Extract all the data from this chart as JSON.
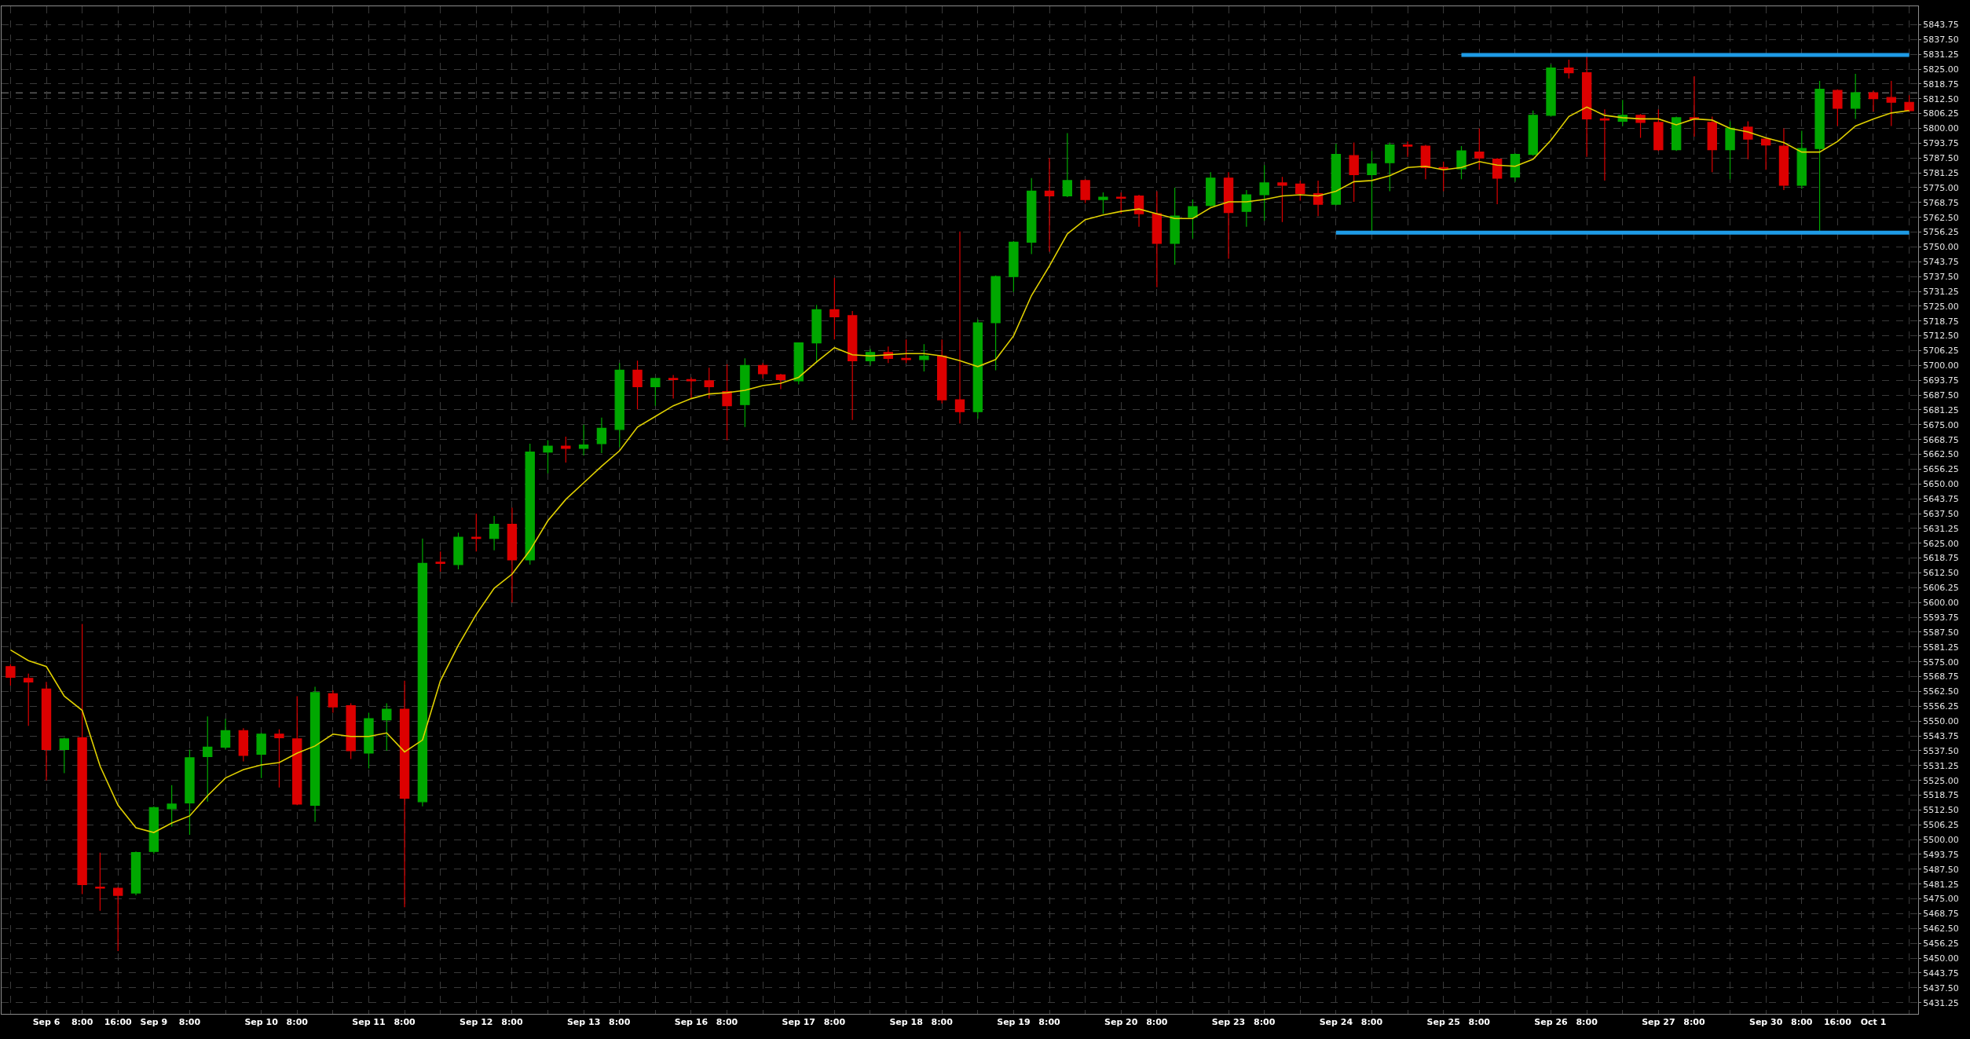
{
  "chart_data": {
    "type": "candlestick",
    "categories": [
      null,
      null,
      "Sep 6",
      null,
      "8:00",
      null,
      "16:00",
      null,
      "Sep 9",
      null,
      "8:00",
      null,
      null,
      null,
      "Sep 10",
      null,
      "8:00",
      null,
      null,
      null,
      "Sep 11",
      null,
      "8:00",
      null,
      null,
      null,
      "Sep 12",
      null,
      "8:00",
      null,
      null,
      null,
      "Sep 13",
      null,
      "8:00",
      null,
      null,
      null,
      "Sep 16",
      null,
      "8:00",
      null,
      null,
      null,
      "Sep 17",
      null,
      "8:00",
      null,
      null,
      null,
      "Sep 18",
      null,
      "8:00",
      null,
      null,
      null,
      "Sep 19",
      null,
      "8:00",
      null,
      null,
      null,
      "Sep 20",
      null,
      "8:00",
      null,
      null,
      null,
      "Sep 23",
      null,
      "8:00",
      null,
      null,
      null,
      "Sep 24",
      null,
      "8:00",
      null,
      null,
      null,
      "Sep 25",
      null,
      "8:00",
      null,
      null,
      null,
      "Sep 26",
      null,
      "8:00",
      null,
      null,
      null,
      "Sep 27",
      null,
      "8:00",
      null,
      null,
      null,
      "Sep 30",
      null,
      "8:00",
      null,
      "16:00",
      null,
      "Oct 1",
      null,
      null
    ],
    "ohlc": [
      [
        5573,
        5574,
        5565,
        5568.5
      ],
      [
        5568,
        5570,
        5548,
        5566.5
      ],
      [
        5563.5,
        5566.5,
        5525,
        5538
      ],
      [
        5538,
        5543,
        5528,
        5542.5
      ],
      [
        5543,
        5591,
        5477,
        5481
      ],
      [
        5480,
        5494.5,
        5470,
        5479.5
      ],
      [
        5479.5,
        5480,
        5453,
        5476.5
      ],
      [
        5477.5,
        5495,
        5476.5,
        5494.5
      ],
      [
        5495,
        5514,
        5494,
        5513.5
      ],
      [
        5513,
        5523,
        5505.5,
        5515
      ],
      [
        5515.5,
        5538,
        5502,
        5534.5
      ],
      [
        5535,
        5552,
        5516,
        5539
      ],
      [
        5539,
        5551,
        5538,
        5546
      ],
      [
        5546,
        5547,
        5533,
        5535.5
      ],
      [
        5536,
        5545,
        5526,
        5544.5
      ],
      [
        5544.5,
        5546.5,
        5522,
        5543
      ],
      [
        5542.5,
        5560.5,
        5514.5,
        5515
      ],
      [
        5514.5,
        5564.5,
        5507.5,
        5562
      ],
      [
        5561.5,
        5563,
        5553.5,
        5556
      ],
      [
        5556.5,
        5557.5,
        5534,
        5537.5
      ],
      [
        5536.5,
        5553.5,
        5530,
        5551
      ],
      [
        5550.5,
        5557.5,
        5537.5,
        5555
      ],
      [
        5555,
        5567,
        5471.5,
        5517.5
      ],
      [
        5516,
        5627,
        5514,
        5616.5
      ],
      [
        5617,
        5621.5,
        5613,
        5616.5
      ],
      [
        5616,
        5629.5,
        5614,
        5627.5
      ],
      [
        5627.5,
        5637.5,
        5621.5,
        5627
      ],
      [
        5627,
        5636.5,
        5622,
        5633
      ],
      [
        5633,
        5640,
        5600,
        5618
      ],
      [
        5618,
        5667,
        5616,
        5663.5
      ],
      [
        5663.5,
        5668.5,
        5654.5,
        5666
      ],
      [
        5666,
        5670,
        5659,
        5665
      ],
      [
        5665,
        5675,
        5662,
        5666.5
      ],
      [
        5667,
        5678,
        5663,
        5673.5
      ],
      [
        5673,
        5701,
        5665.5,
        5698
      ],
      [
        5698,
        5702,
        5681.5,
        5691
      ],
      [
        5691,
        5694.5,
        5683,
        5694.5
      ],
      [
        5694.5,
        5696,
        5686,
        5694
      ],
      [
        5694,
        5695,
        5686,
        5693.5
      ],
      [
        5693.5,
        5699,
        5686,
        5691
      ],
      [
        5689,
        5700.5,
        5668.5,
        5683
      ],
      [
        5683.5,
        5703,
        5674,
        5700
      ],
      [
        5700,
        5701,
        5694.5,
        5696.5
      ],
      [
        5696,
        5696.5,
        5690,
        5694
      ],
      [
        5693.5,
        5709.5,
        5692,
        5709.5
      ],
      [
        5709.5,
        5725.5,
        5701,
        5723.5
      ],
      [
        5723.5,
        5737,
        5711,
        5720.5
      ],
      [
        5721,
        5723,
        5677,
        5702
      ],
      [
        5702,
        5707,
        5700,
        5705.5
      ],
      [
        5705.5,
        5708,
        5701,
        5703
      ],
      [
        5703,
        5711,
        5701,
        5702.5
      ],
      [
        5702.5,
        5709,
        5697.5,
        5704
      ],
      [
        5704,
        5711,
        5684,
        5685.5
      ],
      [
        5685.5,
        5756.5,
        5675.5,
        5680.5
      ],
      [
        5680.5,
        5719.5,
        5677.5,
        5718
      ],
      [
        5718,
        5738,
        5698,
        5737.5
      ],
      [
        5737.5,
        5752.5,
        5731,
        5752
      ],
      [
        5752,
        5779,
        5747,
        5773.5
      ],
      [
        5773.5,
        5787.5,
        5748,
        5771.5
      ],
      [
        5771.5,
        5798,
        5771,
        5778
      ],
      [
        5778,
        5778.5,
        5768.5,
        5770
      ],
      [
        5770,
        5773,
        5764,
        5771
      ],
      [
        5771,
        5773,
        5764,
        5770.5
      ],
      [
        5771.5,
        5772,
        5758.5,
        5764
      ],
      [
        5764,
        5773.5,
        5733,
        5751.5
      ],
      [
        5751.5,
        5775,
        5742.5,
        5763
      ],
      [
        5762.5,
        5770,
        5753.5,
        5767
      ],
      [
        5767.5,
        5781.5,
        5767,
        5779
      ],
      [
        5779,
        5781.5,
        5745,
        5764.5
      ],
      [
        5765,
        5774,
        5758.5,
        5772
      ],
      [
        5772,
        5784.5,
        5761,
        5777
      ],
      [
        5777,
        5779.5,
        5760.5,
        5776
      ],
      [
        5776.5,
        5778,
        5769.5,
        5772.5
      ],
      [
        5772.5,
        5778,
        5763,
        5768
      ],
      [
        5768,
        5793.5,
        5767.5,
        5789
      ],
      [
        5788.5,
        5794,
        5769,
        5780.5
      ],
      [
        5780.5,
        5790.5,
        5756,
        5785
      ],
      [
        5785.5,
        5794,
        5773.5,
        5793
      ],
      [
        5793,
        5794.5,
        5788,
        5792.5
      ],
      [
        5792.5,
        5793,
        5778.5,
        5783.5
      ],
      [
        5783.5,
        5786,
        5773.5,
        5783
      ],
      [
        5783,
        5792.5,
        5778.5,
        5790.5
      ],
      [
        5790,
        5800,
        5782.5,
        5787.5
      ],
      [
        5787,
        5787.5,
        5768,
        5779
      ],
      [
        5779.5,
        5789.5,
        5777.5,
        5789
      ],
      [
        5789,
        5807.5,
        5788.5,
        5805.5
      ],
      [
        5805.5,
        5827,
        5805,
        5825.5
      ],
      [
        5825.5,
        5829,
        5821,
        5823.5
      ],
      [
        5823.5,
        5830.5,
        5788,
        5804
      ],
      [
        5804,
        5808,
        5778,
        5803.5
      ],
      [
        5803,
        5812,
        5801,
        5805.5
      ],
      [
        5805.5,
        5806,
        5796,
        5802.5
      ],
      [
        5802.5,
        5808,
        5790.5,
        5791
      ],
      [
        5791,
        5805,
        5790.5,
        5804.5
      ],
      [
        5804.5,
        5822,
        5796.5,
        5804
      ],
      [
        5802.5,
        5805,
        5781.5,
        5791
      ],
      [
        5791,
        5803,
        5778.5,
        5800
      ],
      [
        5800.5,
        5803,
        5787,
        5795.5
      ],
      [
        5795.5,
        5796,
        5782.5,
        5793
      ],
      [
        5792.5,
        5800,
        5774,
        5776
      ],
      [
        5776,
        5799,
        5774.5,
        5791.5
      ],
      [
        5791.5,
        5820,
        5756,
        5816.5
      ],
      [
        5816,
        5816.5,
        5801,
        5808.5
      ],
      [
        5808.5,
        5823,
        5804,
        5815
      ],
      [
        5815,
        5816,
        5807,
        5812.5
      ],
      [
        5813,
        5820,
        5801,
        5811
      ],
      [
        5811,
        5814,
        5807,
        5807.5
      ]
    ],
    "colors": [
      "#dc0000",
      "#dc0000",
      "#dc0000",
      "#00a800",
      "#dc0000",
      "#dc0000",
      "#dc0000",
      "#00a800",
      "#00a800",
      "#00a800",
      "#00a800",
      "#00a800",
      "#00a800",
      "#dc0000",
      "#00a800",
      "#dc0000",
      "#dc0000",
      "#00a800",
      "#dc0000",
      "#dc0000",
      "#00a800",
      "#00a800",
      "#dc0000",
      "#00a800",
      "#dc0000",
      "#00a800",
      "#dc0000",
      "#00a800",
      "#dc0000",
      "#00a800",
      "#00a800",
      "#dc0000",
      "#00a800",
      "#00a800",
      "#00a800",
      "#dc0000",
      "#00a800",
      "#dc0000",
      "#dc0000",
      "#dc0000",
      "#dc0000",
      "#00a800",
      "#dc0000",
      "#dc0000",
      "#00a800",
      "#00a800",
      "#dc0000",
      "#dc0000",
      "#00a800",
      "#dc0000",
      "#dc0000",
      "#00a800",
      "#dc0000",
      "#dc0000",
      "#00a800",
      "#00a800",
      "#00a800",
      "#00a800",
      "#dc0000",
      "#00a800",
      "#dc0000",
      "#00a800",
      "#dc0000",
      "#dc0000",
      "#dc0000",
      "#00a800",
      "#00a800",
      "#00a800",
      "#dc0000",
      "#00a800",
      "#00a800",
      "#dc0000",
      "#dc0000",
      "#dc0000",
      "#00a800",
      "#dc0000",
      "#00a800",
      "#00a800",
      "#dc0000",
      "#dc0000",
      "#dc0000",
      "#00a800",
      "#dc0000",
      "#dc0000",
      "#00a800",
      "#00a800",
      "#00a800",
      "#dc0000",
      "#dc0000",
      "#dc0000",
      "#00a800",
      "#dc0000",
      "#dc0000",
      "#00a800",
      "#dc0000",
      "#dc0000",
      "#00a800",
      "#dc0000",
      "#dc0000",
      "#dc0000",
      "#00a800",
      "#00a800",
      "#dc0000",
      "#00a800",
      "#dc0000",
      "#dc0000",
      "#dc0000"
    ],
    "series": [
      {
        "type": "line",
        "color": "#e0d000",
        "values": [
          5580,
          5575.5,
          5573,
          5560.5,
          5554.5,
          5531,
          5514.5,
          5505,
          5503,
          5507,
          5510,
          5518.5,
          5526,
          5529.5,
          5531.5,
          5532.5,
          5536.5,
          5539.5,
          5544.5,
          5543.5,
          5543.5,
          5545,
          5537,
          5542,
          5567,
          5582,
          5595,
          5606,
          5612,
          5622,
          5634.5,
          5643.5,
          5650.5,
          5657.5,
          5664,
          5674,
          5678.5,
          5683,
          5686,
          5688,
          5688.5,
          5689.5,
          5691.5,
          5692.5,
          5695,
          5701.5,
          5707.5,
          5704.5,
          5704,
          5704.5,
          5705,
          5705,
          5704,
          5702,
          5699.5,
          5702.5,
          5712.5,
          5729.5,
          5742,
          5755.5,
          5761.5,
          5763.5,
          5765,
          5766,
          5764,
          5762,
          5762,
          5766.5,
          5769,
          5769,
          5770,
          5771.5,
          5772,
          5771.5,
          5773.5,
          5777.5,
          5778,
          5780,
          5783.5,
          5784,
          5782.5,
          5783.5,
          5786,
          5784.5,
          5784,
          5787,
          5795,
          5805,
          5809,
          5805.5,
          5804.5,
          5804,
          5804,
          5801.5,
          5804,
          5803.5,
          5800,
          5798.5,
          5796,
          5794,
          5790,
          5790,
          5794.5,
          5801,
          5804,
          5806.5,
          5807.5
        ]
      },
      {
        "type": "line",
        "color": "#1e9be6",
        "values": [
          null,
          null,
          null,
          null,
          null,
          null,
          null,
          null,
          null,
          null,
          null,
          null,
          null,
          null,
          null,
          null,
          null,
          null,
          null,
          null,
          null,
          null,
          null,
          null,
          null,
          null,
          null,
          null,
          null,
          null,
          null,
          null,
          null,
          null,
          null,
          null,
          null,
          null,
          null,
          null,
          null,
          null,
          null,
          null,
          null,
          null,
          null,
          null,
          null,
          null,
          null,
          null,
          null,
          null,
          null,
          null,
          null,
          null,
          null,
          null,
          null,
          null,
          null,
          null,
          null,
          null,
          null,
          null,
          null,
          null,
          null,
          null,
          null,
          null,
          null,
          null,
          null,
          null,
          null,
          null,
          null,
          5831,
          5831,
          5831,
          5831,
          5831,
          5831,
          5831,
          5831,
          5831,
          5831,
          5831,
          5831,
          5831,
          5831,
          5831,
          5831,
          5831,
          5831,
          5831,
          5831,
          5831,
          5831,
          5831,
          5831,
          5831,
          5831
        ]
      },
      {
        "type": "line",
        "color": "#1e9be6",
        "values": [
          null,
          null,
          null,
          null,
          null,
          null,
          null,
          null,
          null,
          null,
          null,
          null,
          null,
          null,
          null,
          null,
          null,
          null,
          null,
          null,
          null,
          null,
          null,
          null,
          null,
          null,
          null,
          null,
          null,
          null,
          null,
          null,
          null,
          null,
          null,
          null,
          null,
          null,
          null,
          null,
          null,
          null,
          null,
          null,
          null,
          null,
          null,
          null,
          null,
          null,
          null,
          null,
          null,
          null,
          null,
          null,
          null,
          null,
          null,
          null,
          null,
          null,
          null,
          null,
          null,
          null,
          null,
          null,
          null,
          null,
          null,
          null,
          null,
          null,
          5756,
          5756,
          5756,
          5756,
          5756,
          5756,
          5756,
          5756,
          5756,
          5756,
          5756,
          5756,
          5756,
          5756,
          5756,
          5756,
          5756,
          5756,
          5756,
          5756,
          5756,
          5756,
          5756,
          5756,
          5756,
          5756,
          5756,
          5756,
          5756,
          5756,
          5756,
          5756,
          5756
        ]
      }
    ],
    "ref_lines": [
      {
        "axis": "y",
        "value": 5815,
        "color": "#8c8c8c",
        "line_style": "dashed"
      }
    ],
    "ylim": [
      5426.5,
      5851.5
    ],
    "yticks": [
      5431.25,
      {
        "value": 5437.5,
        "label": "5437.50"
      },
      5443.75,
      {
        "value": 5450,
        "label": "5450.00"
      },
      5456.25,
      {
        "value": 5462.5,
        "label": "5462.50"
      },
      5468.75,
      {
        "value": 5475,
        "label": "5475.00"
      },
      5481.25,
      {
        "value": 5487.5,
        "label": "5487.50"
      },
      5493.75,
      {
        "value": 5500,
        "label": "5500.00"
      },
      5506.25,
      {
        "value": 5512.5,
        "label": "5512.50"
      },
      5518.75,
      {
        "value": 5525,
        "label": "5525.00"
      },
      5531.25,
      {
        "value": 5537.5,
        "label": "5537.50"
      },
      5543.75,
      {
        "value": 5550,
        "label": "5550.00"
      },
      5556.25,
      {
        "value": 5562.5,
        "label": "5562.50"
      },
      5568.75,
      {
        "value": 5575,
        "label": "5575.00"
      },
      5581.25,
      {
        "value": 5587.5,
        "label": "5587.50"
      },
      5593.75,
      {
        "value": 5600,
        "label": "5600.00"
      },
      5606.25,
      {
        "value": 5612.5,
        "label": "5612.50"
      },
      5618.75,
      {
        "value": 5625,
        "label": "5625.00"
      },
      5631.25,
      {
        "value": 5637.5,
        "label": "5637.50"
      },
      5643.75,
      {
        "value": 5650,
        "label": "5650.00"
      },
      5656.25,
      {
        "value": 5662.5,
        "label": "5662.50"
      },
      5668.75,
      {
        "value": 5675,
        "label": "5675.00"
      },
      5681.25,
      {
        "value": 5687.5,
        "label": "5687.50"
      },
      5693.75,
      {
        "value": 5700,
        "label": "5700.00"
      },
      5706.25,
      {
        "value": 5712.5,
        "label": "5712.50"
      },
      5718.75,
      {
        "value": 5725,
        "label": "5725.00"
      },
      5731.25,
      {
        "value": 5737.5,
        "label": "5737.50"
      },
      5743.75,
      {
        "value": 5750,
        "label": "5750.00"
      },
      5756.25,
      {
        "value": 5762.5,
        "label": "5762.50"
      },
      5768.75,
      {
        "value": 5775,
        "label": "5775.00"
      },
      5781.25,
      {
        "value": 5787.5,
        "label": "5787.50"
      },
      5793.75,
      {
        "value": 5800,
        "label": "5800.00"
      },
      5806.25,
      {
        "value": 5812.5,
        "label": "5812.50"
      },
      5818.75,
      {
        "value": 5825,
        "label": "5825.00"
      },
      5831.25,
      {
        "value": 5837.5,
        "label": "5837.50"
      },
      5843.75
    ],
    "grid": true
  }
}
